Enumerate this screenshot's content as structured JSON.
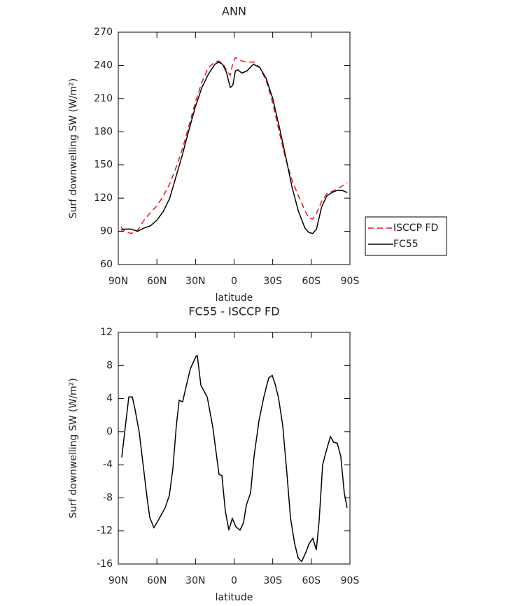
{
  "chart_data": [
    {
      "type": "line",
      "title": "ANN",
      "xlabel": "latitude",
      "ylabel": "Surf downwelling SW (W/m²)",
      "xlim": [
        90,
        -90
      ],
      "xticks": [
        {
          "value": 90,
          "label": "90N"
        },
        {
          "value": 60,
          "label": "60N"
        },
        {
          "value": 30,
          "label": "30N"
        },
        0,
        {
          "value": -30,
          "label": "30S"
        },
        {
          "value": -60,
          "label": "60S"
        },
        {
          "value": -90,
          "label": "90S"
        }
      ],
      "ylim": [
        60,
        270
      ],
      "yticks": [
        60,
        90,
        120,
        150,
        180,
        210,
        240,
        270
      ],
      "legend": "right",
      "x": [
        88,
        85,
        80,
        75,
        70,
        65,
        60,
        55,
        50,
        45,
        40,
        35,
        30,
        25,
        20,
        15,
        12,
        9,
        6,
        3,
        1,
        -1,
        -3,
        -6,
        -10,
        -15,
        -20,
        -25,
        -30,
        -35,
        -40,
        -45,
        -50,
        -55,
        -58,
        -61,
        -64,
        -68,
        -72,
        -76,
        -80,
        -84,
        -88
      ],
      "series": [
        {
          "name": "ISCCP FD",
          "color": "#e8141c",
          "linestyle": "dashed",
          "values": [
            94,
            90,
            88,
            91,
            100,
            107,
            113,
            122,
            133,
            148,
            165,
            186,
            207,
            225,
            238,
            243,
            244,
            242,
            236,
            231,
            242,
            247,
            246,
            244,
            243,
            243,
            238,
            226,
            206,
            180,
            156,
            136,
            122,
            109,
            102,
            101,
            106,
            117,
            124,
            126,
            128,
            131,
            134
          ]
        },
        {
          "name": "FC55",
          "color": "#000000",
          "linestyle": "solid",
          "values": [
            91,
            92,
            92,
            90,
            93,
            95,
            100,
            108,
            120,
            140,
            160,
            182,
            203,
            220,
            232,
            241,
            243,
            241,
            234,
            220,
            222,
            235,
            236,
            233,
            235,
            241,
            238,
            228,
            210,
            185,
            158,
            130,
            108,
            93,
            89,
            88,
            92,
            112,
            122,
            125,
            127,
            127,
            125
          ]
        }
      ]
    },
    {
      "type": "line",
      "title": "FC55 - ISCCP FD",
      "xlabel": "latitude",
      "ylabel": "Surf downwelling SW (W/m²)",
      "xlim": [
        90,
        -90
      ],
      "xticks": [
        {
          "value": 90,
          "label": "90N"
        },
        {
          "value": 60,
          "label": "60N"
        },
        {
          "value": 30,
          "label": "30N"
        },
        0,
        {
          "value": -30,
          "label": "30S"
        },
        {
          "value": -60,
          "label": "60S"
        },
        {
          "value": -90,
          "label": "90S"
        }
      ],
      "ylim": [
        -16,
        12
      ],
      "yticks": [
        -16,
        -12,
        -8,
        -4,
        0,
        4,
        8,
        12
      ],
      "color": "#000000",
      "x": [
        87.3,
        81.8,
        79.1,
        77,
        73.7,
        67.7,
        65.5,
        62.3,
        58.5,
        53.6,
        50.3,
        47.6,
        44.9,
        42.7,
        40,
        37.8,
        34,
        29.6,
        28.6,
        25.8,
        20.9,
        16.6,
        11.7,
        9.5,
        6.8,
        4.1,
        1.4,
        -1.4,
        -4.6,
        -7.3,
        -9.5,
        -12.8,
        -15.5,
        -19.3,
        -23.1,
        -26.9,
        -29.6,
        -31.8,
        -34.5,
        -37.8,
        -41,
        -43.8,
        -47,
        -49.8,
        -52.5,
        -55.7,
        -58.4,
        -61.2,
        -63.9,
        -66.1,
        -68.8,
        -71.5,
        -74.8,
        -77.5,
        -80.2,
        -82.9,
        -85.6,
        -87.8
      ],
      "values": [
        -3.1,
        4.2,
        4.2,
        2.7,
        -0.1,
        -7.9,
        -10.4,
        -11.6,
        -10.6,
        -9.2,
        -7.7,
        -4.5,
        0.7,
        3.8,
        3.6,
        5.1,
        7.6,
        9.1,
        9.2,
        5.6,
        4.2,
        0.6,
        -5.2,
        -5.3,
        -9.6,
        -11.9,
        -10.5,
        -11.5,
        -11.9,
        -11.0,
        -8.9,
        -7.4,
        -3.0,
        1.3,
        4.2,
        6.5,
        6.8,
        5.8,
        4.1,
        0.7,
        -5.0,
        -10.4,
        -13.5,
        -15.3,
        -15.7,
        -14.6,
        -13.5,
        -12.9,
        -14.3,
        -10.7,
        -4.0,
        -2.4,
        -0.6,
        -1.3,
        -1.4,
        -3.0,
        -7.4,
        -9.2
      ]
    }
  ]
}
